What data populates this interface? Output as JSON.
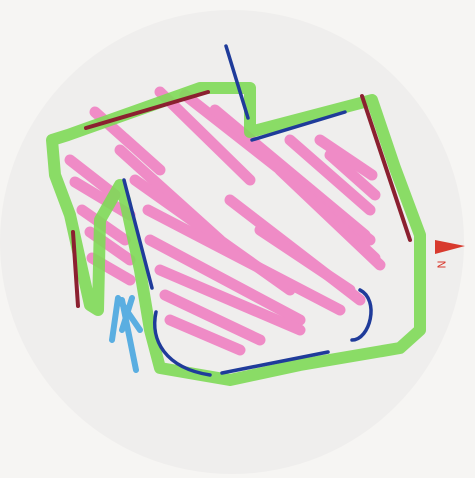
{
  "sketch": {
    "compass_label": "N",
    "colors": {
      "paper": "#f6f5f3",
      "disc": "#ecebea",
      "outline_green": "#7ed957",
      "hatch_pink": "#f07ac0",
      "wall_blue": "#1f3b9a",
      "wall_red": "#8b2030",
      "arrow_cyan": "#4aa8e0",
      "north_marker": "#d83a2e"
    },
    "legend_meaning": {
      "green": "enclosure-outline",
      "pink": "hatched-area",
      "blue": "wall-segments",
      "red": "wall-segments",
      "cyan": "entry-arrow"
    }
  }
}
